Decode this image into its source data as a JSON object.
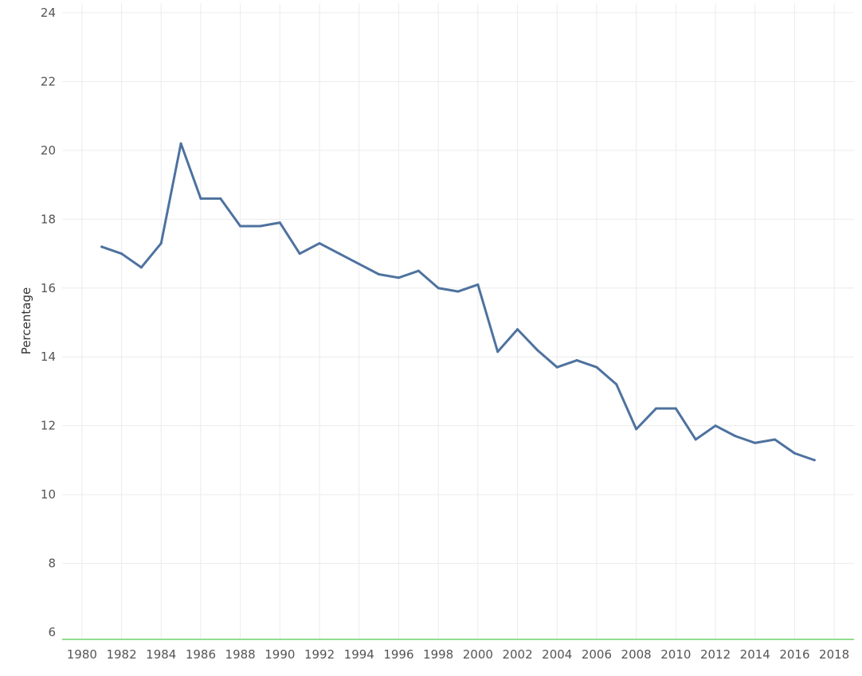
{
  "chart_data": {
    "type": "line",
    "title": "",
    "xlabel": "",
    "ylabel": "Percentage",
    "xlim": [
      1979,
      2019
    ],
    "ylim": [
      6,
      24
    ],
    "x_ticks": [
      1980,
      1982,
      1984,
      1986,
      1988,
      1990,
      1992,
      1994,
      1996,
      1998,
      2000,
      2002,
      2004,
      2006,
      2008,
      2010,
      2012,
      2014,
      2016,
      2018
    ],
    "y_ticks": [
      6,
      8,
      10,
      12,
      14,
      16,
      18,
      20,
      22,
      24
    ],
    "grid": true,
    "legend": "none",
    "baseline_color": "#6fd16a",
    "series": [
      {
        "color": "#4e729f",
        "x": [
          1981,
          1982,
          1983,
          1984,
          1985,
          1986,
          1987,
          1988,
          1989,
          1990,
          1991,
          1992,
          1993,
          1994,
          1995,
          1996,
          1997,
          1998,
          1999,
          2000,
          2001,
          2002,
          2003,
          2004,
          2005,
          2006,
          2007,
          2008,
          2009,
          2010,
          2011,
          2012,
          2013,
          2014,
          2015,
          2016,
          2017
        ],
        "values": [
          17.2,
          17.0,
          16.6,
          17.3,
          20.2,
          18.6,
          18.6,
          17.8,
          17.8,
          17.9,
          17.0,
          17.3,
          17.0,
          16.7,
          16.4,
          16.3,
          16.5,
          16.0,
          15.9,
          16.1,
          14.15,
          14.8,
          14.2,
          13.7,
          13.9,
          13.7,
          13.2,
          11.9,
          12.5,
          12.5,
          11.6,
          12.0,
          11.7,
          11.5,
          11.6,
          11.2,
          11.0
        ]
      }
    ]
  }
}
